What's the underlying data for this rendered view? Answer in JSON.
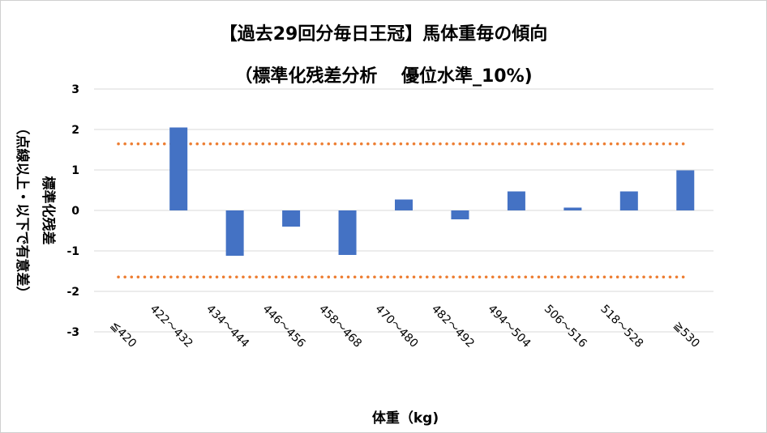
{
  "chart_data": {
    "type": "bar",
    "title": "【過去29回分毎日王冠】馬体重毎の傾向",
    "subtitle": "（標準化残差分析　 優位水準_10%)",
    "xlabel": "体重（kg)",
    "ylabel": "標準化残差",
    "ylabel_note": "（点線以上・以下で有意差）",
    "categories": [
      "≦420",
      "422～432",
      "434～444",
      "446～456",
      "458～468",
      "470～480",
      "482～492",
      "494～504",
      "506～516",
      "518～528",
      "≧530"
    ],
    "values": [
      0,
      2.05,
      -1.12,
      -0.4,
      -1.1,
      0.27,
      -0.22,
      0.47,
      0.07,
      0.47,
      0.99
    ],
    "ylim": [
      -3,
      3
    ],
    "yticks": [
      "3",
      "2",
      "1",
      "0",
      "-1",
      "-2",
      "-3"
    ],
    "reference_lines": [
      1.645,
      -1.645
    ],
    "grid": true,
    "legend": "none",
    "colors": {
      "bar": "#4472C4",
      "reference": "#ED7D31",
      "grid": "#d9d9d9"
    }
  }
}
